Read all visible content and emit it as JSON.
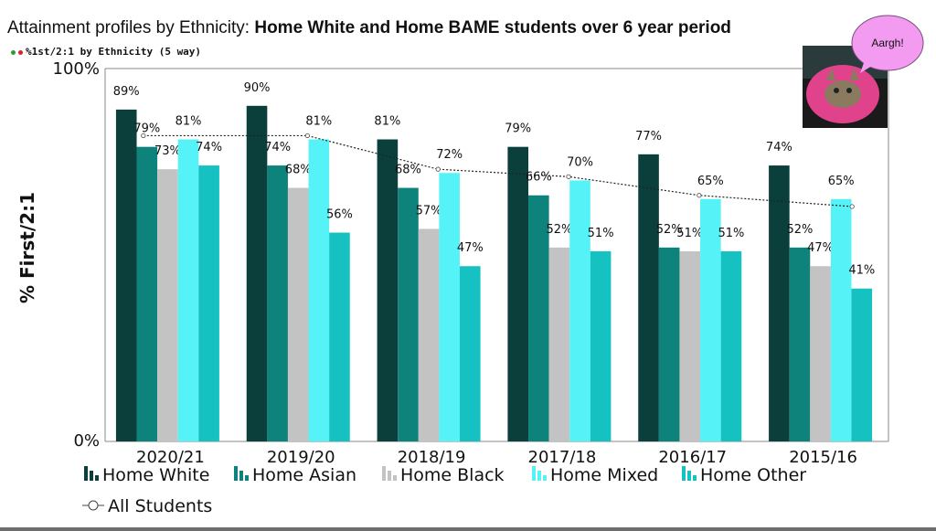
{
  "title": {
    "lead": "Attainment profiles by Ethnicity:",
    "bold": "Home White and Home BAME students over 6 year period"
  },
  "subtitle": "%1st/2:1 by Ethnicity (5 way)",
  "bubble": {
    "text": "Aargh!",
    "color": "#f39bf0"
  },
  "photo": {
    "icon": "cat-in-donut-photo"
  },
  "chart_data": {
    "type": "bar",
    "ylabel": "% First/2:1",
    "ylim": [
      0,
      100
    ],
    "ytick_labels": [
      "0%",
      "100%"
    ],
    "grid": false,
    "legend": "bottom",
    "categories": [
      "2020/21",
      "2019/20",
      "2018/19",
      "2017/18",
      "2016/17",
      "2015/16"
    ],
    "series": [
      {
        "name": "Home White",
        "color": "#0b3f3c",
        "values": [
          89,
          90,
          81,
          79,
          77,
          74
        ],
        "labels": [
          "89%",
          "90%",
          "81%",
          "79%",
          "77%",
          "74%"
        ]
      },
      {
        "name": "Home Asian",
        "color": "#0e837c",
        "values": [
          79,
          74,
          68,
          66,
          52,
          52
        ],
        "labels": [
          "79%",
          "74%",
          "68%",
          "66%",
          "52%",
          "52%"
        ]
      },
      {
        "name": "Home Black",
        "color": "#c3c3c3",
        "values": [
          73,
          68,
          57,
          52,
          51,
          47
        ],
        "labels": [
          "73%",
          "68%",
          "57%",
          "52%",
          "51%",
          "47%"
        ]
      },
      {
        "name": "Home Mixed",
        "color": "#55f3f8",
        "values": [
          81,
          81,
          72,
          70,
          65,
          65
        ],
        "labels": [
          "81%",
          "81%",
          "72%",
          "70%",
          "65%",
          "65%"
        ]
      },
      {
        "name": "Home Other",
        "color": "#15c1c1",
        "values": [
          74,
          56,
          47,
          51,
          51,
          41
        ],
        "labels": [
          "74%",
          "56%",
          "47%",
          "51%",
          "51%",
          "41%"
        ]
      }
    ],
    "line": {
      "name": "All Students",
      "values": [
        82,
        82,
        73,
        71,
        66,
        63
      ]
    }
  }
}
